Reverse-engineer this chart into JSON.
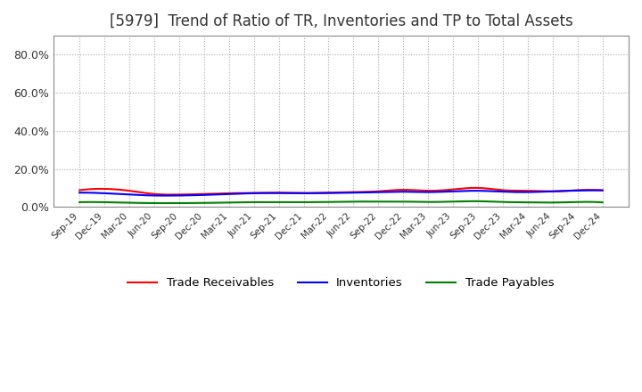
{
  "title": "[5979]  Trend of Ratio of TR, Inventories and TP to Total Assets",
  "title_fontsize": 12,
  "ylim": [
    0,
    0.9
  ],
  "yticks": [
    0.0,
    0.2,
    0.4,
    0.6,
    0.8
  ],
  "ytick_labels": [
    "0.0%",
    "20.0%",
    "40.0%",
    "60.0%",
    "80.0%"
  ],
  "background_color": "#ffffff",
  "grid_color": "#aaaaaa",
  "x_labels": [
    "Sep-19",
    "Dec-19",
    "Mar-20",
    "Jun-20",
    "Sep-20",
    "Dec-20",
    "Mar-21",
    "Jun-21",
    "Sep-21",
    "Dec-21",
    "Mar-22",
    "Jun-22",
    "Sep-22",
    "Dec-22",
    "Mar-23",
    "Jun-23",
    "Sep-23",
    "Dec-23",
    "Mar-24",
    "Jun-24",
    "Sep-24",
    "Dec-24"
  ],
  "trade_receivables": [
    0.088,
    0.095,
    0.085,
    0.068,
    0.065,
    0.068,
    0.072,
    0.073,
    0.075,
    0.073,
    0.075,
    0.078,
    0.082,
    0.09,
    0.085,
    0.092,
    0.1,
    0.088,
    0.085,
    0.082,
    0.088,
    0.086
  ],
  "inventories": [
    0.075,
    0.072,
    0.065,
    0.06,
    0.06,
    0.063,
    0.068,
    0.072,
    0.073,
    0.072,
    0.073,
    0.075,
    0.078,
    0.08,
    0.078,
    0.082,
    0.085,
    0.08,
    0.078,
    0.082,
    0.086,
    0.088
  ],
  "trade_payables": [
    0.025,
    0.025,
    0.022,
    0.02,
    0.02,
    0.021,
    0.023,
    0.025,
    0.025,
    0.025,
    0.026,
    0.028,
    0.028,
    0.028,
    0.026,
    0.028,
    0.03,
    0.026,
    0.024,
    0.023,
    0.026,
    0.024
  ],
  "tr_color": "#ff0000",
  "inv_color": "#0000ff",
  "tp_color": "#008000",
  "legend_labels": [
    "Trade Receivables",
    "Inventories",
    "Trade Payables"
  ],
  "line_width": 1.5
}
